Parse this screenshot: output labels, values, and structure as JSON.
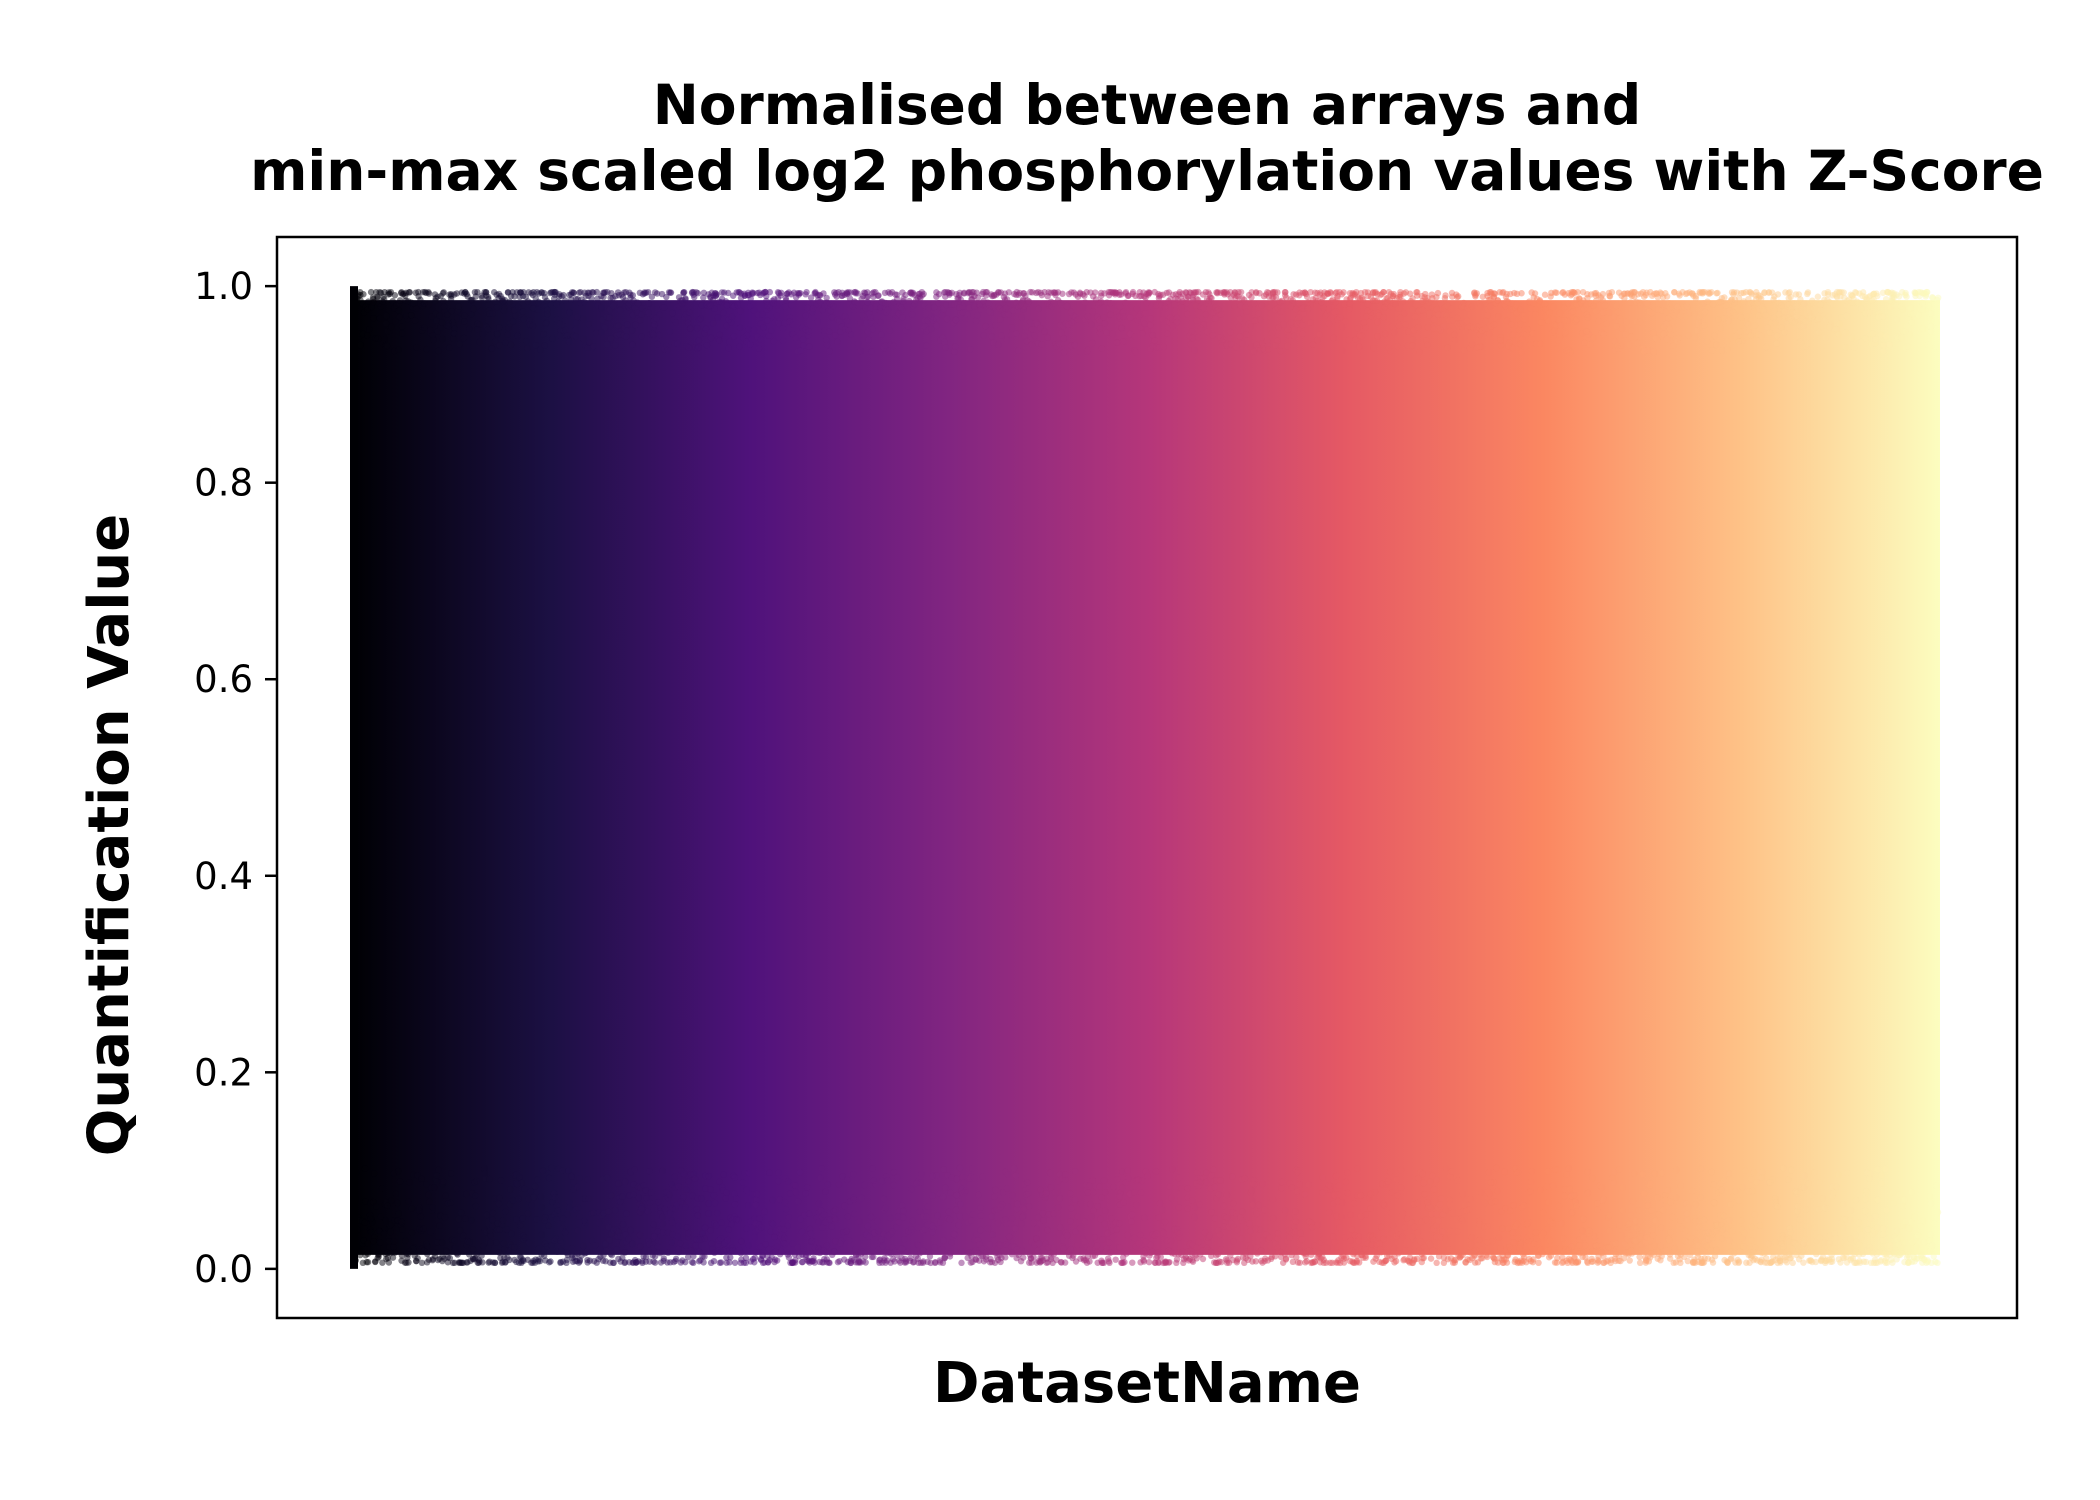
{
  "chart_data": {
    "type": "scatter",
    "title_lines": [
      "Normalised between arrays and",
      "min-max scaled log2 phosphorylation values with Z-Score"
    ],
    "xlabel": "DatasetName",
    "ylabel": "Quantification Value",
    "xticks_visible": false,
    "ylim": [
      -0.05,
      1.05
    ],
    "yticks": [
      {
        "value": 0.0,
        "label": "0.0"
      },
      {
        "value": 0.2,
        "label": "0.2"
      },
      {
        "value": 0.4,
        "label": "0.4"
      },
      {
        "value": 0.6,
        "label": "0.6"
      },
      {
        "value": 0.8,
        "label": "0.8"
      },
      {
        "value": 1.0,
        "label": "1.0"
      }
    ],
    "y_range_of_points": [
      0.0,
      1.0
    ],
    "dense_band_edges": [
      0.0,
      1.0
    ],
    "point_opacity": 0.5,
    "colormap": "magma",
    "colormap_stops": [
      "#000004",
      "#1c1044",
      "#4f127b",
      "#812581",
      "#b5367a",
      "#e55964",
      "#fb8761",
      "#fec287",
      "#fcfdbf"
    ],
    "grid": false,
    "legend": "none"
  }
}
